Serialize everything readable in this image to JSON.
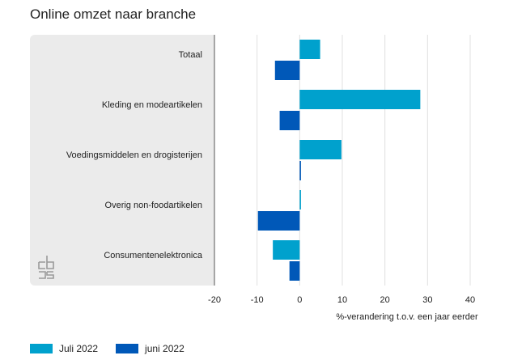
{
  "title": "Online omzet naar branche",
  "colors": {
    "juli": "#00a1cd",
    "juni": "#0058b8",
    "panel": "#ebebeb",
    "grid": "#e0e0e0"
  },
  "logo_icon": "cbs-logo-icon",
  "chart_data": {
    "type": "bar",
    "orientation": "horizontal",
    "categories": [
      "Totaal",
      "Kleding en modeartikelen",
      "Voedingsmiddelen en drogisterijen",
      "Overig non-foodartikelen",
      "Consumentenelektronica"
    ],
    "series": [
      {
        "name": "Juli 2022",
        "values": [
          4.8,
          28.3,
          9.8,
          0.3,
          -6.3
        ]
      },
      {
        "name": "juni 2022",
        "values": [
          -5.8,
          -4.7,
          0.3,
          -9.8,
          -2.4
        ]
      }
    ],
    "xlim": [
      -20,
      40
    ],
    "xticks": [
      -20,
      -10,
      0,
      10,
      20,
      30,
      40
    ],
    "xtick_labels": [
      "-20",
      "-10",
      "0",
      "10",
      "20",
      "30",
      "40"
    ],
    "xlabel": "%-verandering t.o.v. een jaar eerder",
    "grid": true
  },
  "legend": [
    {
      "label": "Juli 2022"
    },
    {
      "label": "juni 2022"
    }
  ]
}
